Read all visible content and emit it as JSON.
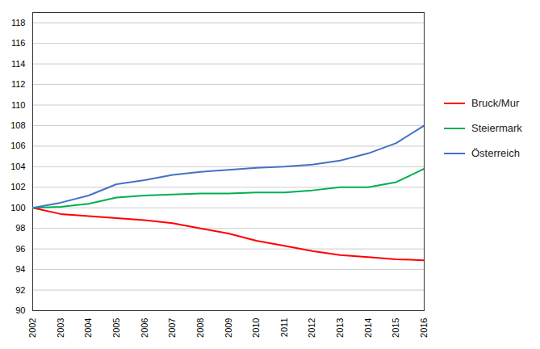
{
  "chart_data": {
    "type": "line",
    "x": [
      2002,
      2003,
      2004,
      2005,
      2006,
      2007,
      2008,
      2009,
      2010,
      2011,
      2012,
      2013,
      2014,
      2015,
      2016
    ],
    "series": [
      {
        "name": "Bruck/Mur",
        "color": "#FF0000",
        "values": [
          100.0,
          99.4,
          99.2,
          99.0,
          98.8,
          98.5,
          98.0,
          97.5,
          96.8,
          96.3,
          95.8,
          95.4,
          95.2,
          95.0,
          94.9
        ]
      },
      {
        "name": "Steiermark",
        "color": "#00B050",
        "values": [
          100.0,
          100.1,
          100.4,
          101.0,
          101.2,
          101.3,
          101.4,
          101.4,
          101.5,
          101.5,
          101.7,
          102.0,
          102.0,
          102.5,
          103.8
        ]
      },
      {
        "name": "Österreich",
        "color": "#4472C4",
        "values": [
          100.0,
          100.5,
          101.2,
          102.3,
          102.7,
          103.2,
          103.5,
          103.7,
          103.9,
          104.0,
          104.2,
          104.6,
          105.3,
          106.3,
          108.0
        ]
      }
    ],
    "xlim": [
      2002,
      2016
    ],
    "xticks": [
      2002,
      2003,
      2004,
      2005,
      2006,
      2007,
      2008,
      2009,
      2010,
      2011,
      2012,
      2013,
      2014,
      2015,
      2016
    ],
    "ylim": [
      90,
      119
    ],
    "yticks": [
      90,
      92,
      94,
      96,
      98,
      100,
      102,
      104,
      106,
      108,
      110,
      112,
      114,
      116,
      118
    ],
    "grid": true,
    "legend": "right"
  }
}
